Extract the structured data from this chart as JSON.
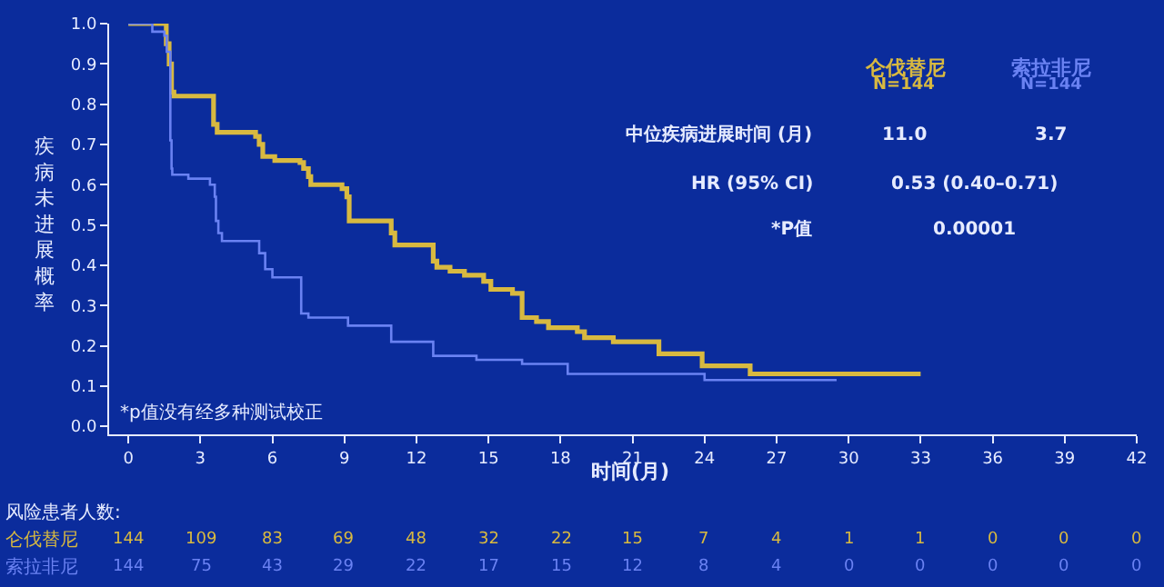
{
  "chart_data": {
    "type": "step",
    "xlabel": "时间(月)",
    "ylabel": "疾病未进展概率",
    "xlim": [
      -0.8,
      42
    ],
    "xticks": [
      0,
      3,
      6,
      9,
      12,
      15,
      18,
      21,
      24,
      27,
      30,
      33,
      36,
      39,
      42
    ],
    "ylim": [
      -0.02,
      1.0
    ],
    "yticks": [
      {
        "value": 0,
        "label": "0.0"
      },
      {
        "value": 0.1,
        "label": "0.1"
      },
      {
        "value": 0.2,
        "label": "0.2"
      },
      {
        "value": 0.3,
        "label": "0.3"
      },
      {
        "value": 0.4,
        "label": "0.4"
      },
      {
        "value": 0.5,
        "label": "0.5"
      },
      {
        "value": 0.6,
        "label": "0.6"
      },
      {
        "value": 0.7,
        "label": "0.7"
      },
      {
        "value": 0.8,
        "label": "0.8"
      },
      {
        "value": 0.9,
        "label": "0.9"
      },
      {
        "value": 1,
        "label": "1.0"
      }
    ],
    "grid": false,
    "legend": false,
    "line_style": "solid",
    "series": [
      {
        "name": "仑伐替尼",
        "color": "#d8b940",
        "x": [
          0,
          1.58,
          1.7,
          1.8,
          1.9,
          3.55,
          3.7,
          5.3,
          5.45,
          5.6,
          6.1,
          7.15,
          7.3,
          7.5,
          7.6,
          8.9,
          9.1,
          9.2,
          10.95,
          11.1,
          12.7,
          12.85,
          13.4,
          14,
          14.8,
          15.1,
          16,
          16.4,
          17,
          17.5,
          18.7,
          19,
          20.2,
          22.1,
          23.9,
          25.9,
          33
        ],
        "values": [
          1.0,
          0.95,
          0.9,
          0.83,
          0.82,
          0.75,
          0.73,
          0.72,
          0.7,
          0.67,
          0.66,
          0.655,
          0.64,
          0.62,
          0.6,
          0.59,
          0.57,
          0.51,
          0.48,
          0.45,
          0.41,
          0.395,
          0.385,
          0.375,
          0.36,
          0.34,
          0.33,
          0.27,
          0.26,
          0.245,
          0.235,
          0.22,
          0.21,
          0.18,
          0.15,
          0.13,
          0.13
        ]
      },
      {
        "name": "索拉非尼",
        "color": "#6a82f2",
        "x": [
          0,
          0.5,
          1.0,
          1.5,
          1.6,
          1.75,
          1.8,
          1.83,
          2.5,
          3.4,
          3.6,
          3.65,
          3.75,
          3.9,
          5.45,
          5.7,
          6.0,
          7.2,
          7.5,
          9.15,
          10.95,
          12.7,
          14.5,
          16.4,
          18.3,
          24,
          29.5
        ],
        "values": [
          1.0,
          1.0,
          0.98,
          0.97,
          0.93,
          0.71,
          0.64,
          0.625,
          0.615,
          0.6,
          0.57,
          0.51,
          0.48,
          0.46,
          0.43,
          0.39,
          0.37,
          0.28,
          0.27,
          0.25,
          0.21,
          0.175,
          0.165,
          0.155,
          0.13,
          0.115,
          0.115
        ]
      }
    ],
    "annotations": [
      "N=144",
      "N=144",
      "中位疾病进展时间 (月)",
      "11.0",
      "3.7",
      "HR (95% CI)",
      "0.53 (0.40–0.71)",
      "*P值",
      "0.00001",
      "*p值没有经多种测试校正",
      "风险患者人数:",
      "144 109 83 69 48 32 22 15 7 4 1 1 0 0 0",
      "144 75 43 29 22 17 15 12 8 4 0 0 0 0 0"
    ]
  }
}
